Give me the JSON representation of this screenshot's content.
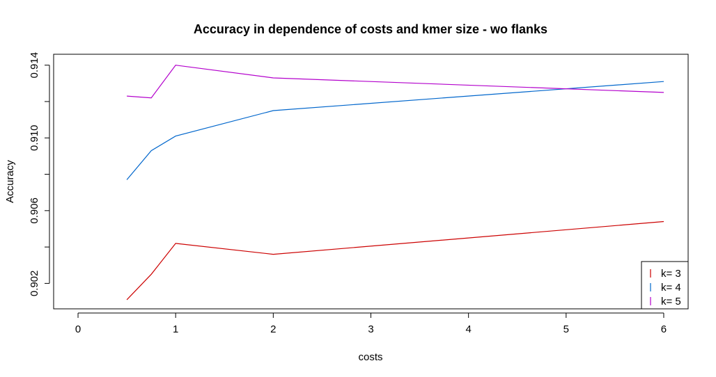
{
  "chart_data": {
    "type": "line",
    "title": "Accuracy in dependence of costs and kmer size - wo flanks",
    "xlabel": "costs",
    "ylabel": "Accuracy",
    "xlim": [
      -0.25,
      6.25
    ],
    "ylim": [
      0.9006,
      0.9146
    ],
    "xticks": [
      0,
      1,
      2,
      3,
      4,
      5,
      6
    ],
    "yticks": [
      0.902,
      0.906,
      0.91,
      0.914
    ],
    "ytick_labels": [
      "0.902",
      "0.906",
      "0.910",
      "0.914"
    ],
    "legend_position": "bottom-right",
    "grid": false,
    "series": [
      {
        "name": "k= 3",
        "color": "#cc0000",
        "x": [
          0.5,
          0.75,
          1,
          2,
          6
        ],
        "y": [
          0.9011,
          0.9025,
          0.9042,
          0.9036,
          0.9054
        ]
      },
      {
        "name": "k= 4",
        "color": "#0066cc",
        "x": [
          0.5,
          0.75,
          1,
          2,
          6
        ],
        "y": [
          0.9077,
          0.9093,
          0.9101,
          0.9115,
          0.9131
        ]
      },
      {
        "name": "k= 5",
        "color": "#b300cc",
        "x": [
          0.5,
          0.75,
          1,
          2,
          6
        ],
        "y": [
          0.9123,
          0.9122,
          0.914,
          0.9133,
          0.9125
        ]
      }
    ]
  }
}
